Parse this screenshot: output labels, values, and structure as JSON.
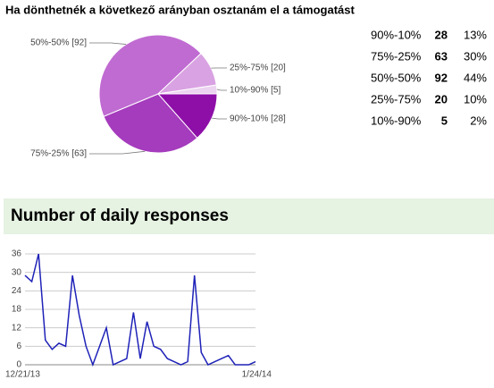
{
  "chart_data": [
    {
      "type": "pie",
      "title": "Ha dönthetnék a következő arányban osztanám el a támogatást",
      "categories": [
        "90%-10%",
        "75%-25%",
        "50%-50%",
        "25%-75%",
        "10%-90%"
      ],
      "values": [
        28,
        63,
        92,
        20,
        5
      ],
      "value_labels": [
        "90%-10% [28]",
        "75%-25% [63]",
        "50%-50% [92]",
        "25%-75% [20]",
        "10%-90% [5]"
      ],
      "colors": [
        "#8e0fa8",
        "#a53bbd",
        "#c06bd2",
        "#d9a2e2",
        "#ecd3f1"
      ]
    },
    {
      "type": "line",
      "title": "Number of daily responses",
      "categories": [
        "12/21/13",
        null,
        null,
        null,
        null,
        null,
        null,
        null,
        null,
        null,
        null,
        null,
        null,
        null,
        null,
        null,
        null,
        null,
        null,
        null,
        null,
        null,
        null,
        null,
        null,
        null,
        null,
        null,
        null,
        null,
        null,
        null,
        null,
        null,
        "1/24/14"
      ],
      "values": [
        29,
        27,
        36,
        8,
        5,
        7,
        6,
        29,
        16,
        6,
        0,
        6,
        12,
        0,
        1,
        2,
        17,
        2,
        14,
        6,
        5,
        2,
        1,
        0,
        1,
        29,
        4,
        0,
        1,
        2,
        3,
        0,
        0,
        0,
        1
      ],
      "color": "#1f22b8",
      "ylim": [
        0,
        36
      ],
      "yticks": [
        0,
        6,
        12,
        18,
        24,
        30,
        36
      ],
      "grid": true
    }
  ],
  "table": {
    "rows": [
      [
        "90%-10%",
        28,
        "13%"
      ],
      [
        "75%-25%",
        63,
        "30%"
      ],
      [
        "50%-50%",
        92,
        "44%"
      ],
      [
        "25%-75%",
        20,
        "10%"
      ],
      [
        "10%-90%",
        5,
        "2%"
      ]
    ]
  }
}
